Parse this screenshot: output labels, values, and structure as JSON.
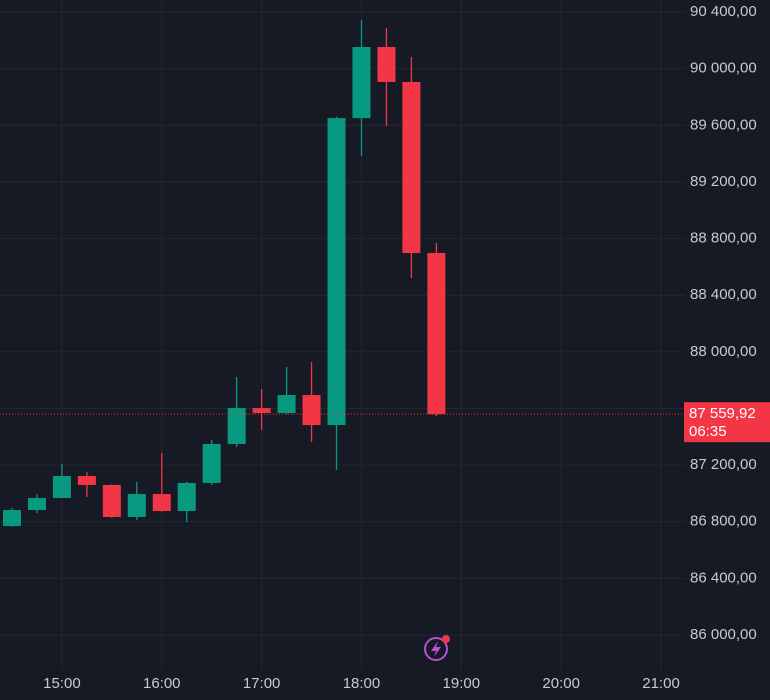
{
  "chart_data": {
    "type": "candlestick",
    "x": [
      14.5,
      14.75,
      15,
      15.25,
      15.5,
      15.75,
      16,
      16.25,
      16.5,
      16.75,
      17,
      17.25,
      17.5,
      17.75,
      18,
      18.25,
      18.5,
      18.75
    ],
    "open": [
      86770,
      86883,
      86968,
      87123,
      87060,
      86834,
      86996,
      86876,
      87074,
      87349,
      87603,
      87568,
      87695,
      87483,
      89651,
      90153,
      89906,
      88698
    ],
    "high": [
      86897,
      86996,
      87208,
      87151,
      87065,
      87081,
      87286,
      87082,
      87377,
      87822,
      87738,
      87893,
      87928,
      89660,
      90344,
      90287,
      90082,
      88769
    ],
    "low": [
      86763,
      86862,
      86968,
      86975,
      86827,
      86813,
      86870,
      86798,
      87060,
      87328,
      87448,
      87560,
      87363,
      87166,
      89383,
      89595,
      88522,
      87547
    ],
    "close": [
      86883,
      86968,
      87123,
      87060,
      86834,
      86996,
      86876,
      87074,
      87349,
      87603,
      87568,
      87695,
      87483,
      89651,
      90153,
      89906,
      88698,
      87559.92
    ],
    "up_color": "#089981",
    "down_color": "#f23645",
    "xlim": [
      14.38,
      21.24
    ],
    "xticks": [
      {
        "value": 15,
        "label": "15:00"
      },
      {
        "value": 16,
        "label": "16:00"
      },
      {
        "value": 17,
        "label": "17:00"
      },
      {
        "value": 18,
        "label": "18:00"
      },
      {
        "value": 19,
        "label": "19:00"
      },
      {
        "value": 20,
        "label": "20:00"
      },
      {
        "value": 21,
        "label": "21:00"
      }
    ],
    "ylim": [
      85753,
      90485
    ],
    "yticks": [
      {
        "value": 86000,
        "label": "86 000,00"
      },
      {
        "value": 86400,
        "label": "86 400,00"
      },
      {
        "value": 86800,
        "label": "86 800,00"
      },
      {
        "value": 87200,
        "label": "87 200,00"
      },
      {
        "value": 87600,
        "label": "87 600,00"
      },
      {
        "value": 88000,
        "label": "88 000,00"
      },
      {
        "value": 88400,
        "label": "88 400,00"
      },
      {
        "value": 88800,
        "label": "88 800,00"
      },
      {
        "value": 89200,
        "label": "89 200,00"
      },
      {
        "value": 89600,
        "label": "89 600,00"
      },
      {
        "value": 90000,
        "label": "90 000,00"
      },
      {
        "value": 90400,
        "label": "90 400,00"
      }
    ],
    "grid": true,
    "last_price": {
      "value": 87559.92,
      "label": "87 559,92"
    },
    "countdown": "06:35"
  }
}
